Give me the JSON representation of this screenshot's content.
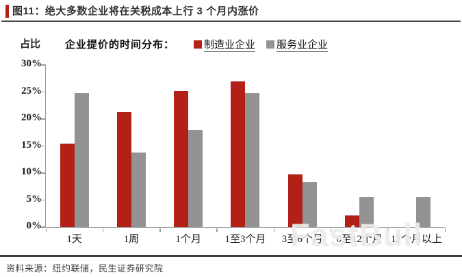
{
  "title": {
    "label": "图11：绝大多数企业将在关税成本上行 3 个月内涨价"
  },
  "legend": {
    "title": "企业提价的时间分布：",
    "items": [
      {
        "label": "制造业企业",
        "color": "#b22017"
      },
      {
        "label": "服务业企业",
        "color": "#939393"
      }
    ]
  },
  "watermark": "FastBull",
  "source": "资料来源：纽约联储，民生证券研究院",
  "colors": {
    "manufacturing": "#b22017",
    "services": "#939393",
    "axis": "#9a9a9a",
    "accent": "#b22017"
  },
  "chart_data": {
    "type": "bar",
    "title": "企业提价的时间分布",
    "categories": [
      "1天",
      "1周",
      "1个月",
      "1至3个月",
      "3至6个月",
      "6至12个月",
      "12个月以上"
    ],
    "series": [
      {
        "name": "制造业企业",
        "color": "#b22017",
        "values": [
          15.5,
          21.3,
          25.2,
          27.0,
          9.8,
          2.2,
          0.0
        ]
      },
      {
        "name": "服务业企业",
        "color": "#939393",
        "values": [
          24.8,
          13.8,
          18.0,
          24.8,
          8.4,
          5.6,
          5.6
        ]
      }
    ],
    "xlabel": "",
    "ylabel": "占比",
    "ylim": [
      0,
      30
    ],
    "ytick_step": 5,
    "yticks": [
      "0%",
      "5%",
      "10%",
      "15%",
      "20%",
      "25%",
      "30%"
    ],
    "grid": false,
    "legend_position": "top"
  }
}
